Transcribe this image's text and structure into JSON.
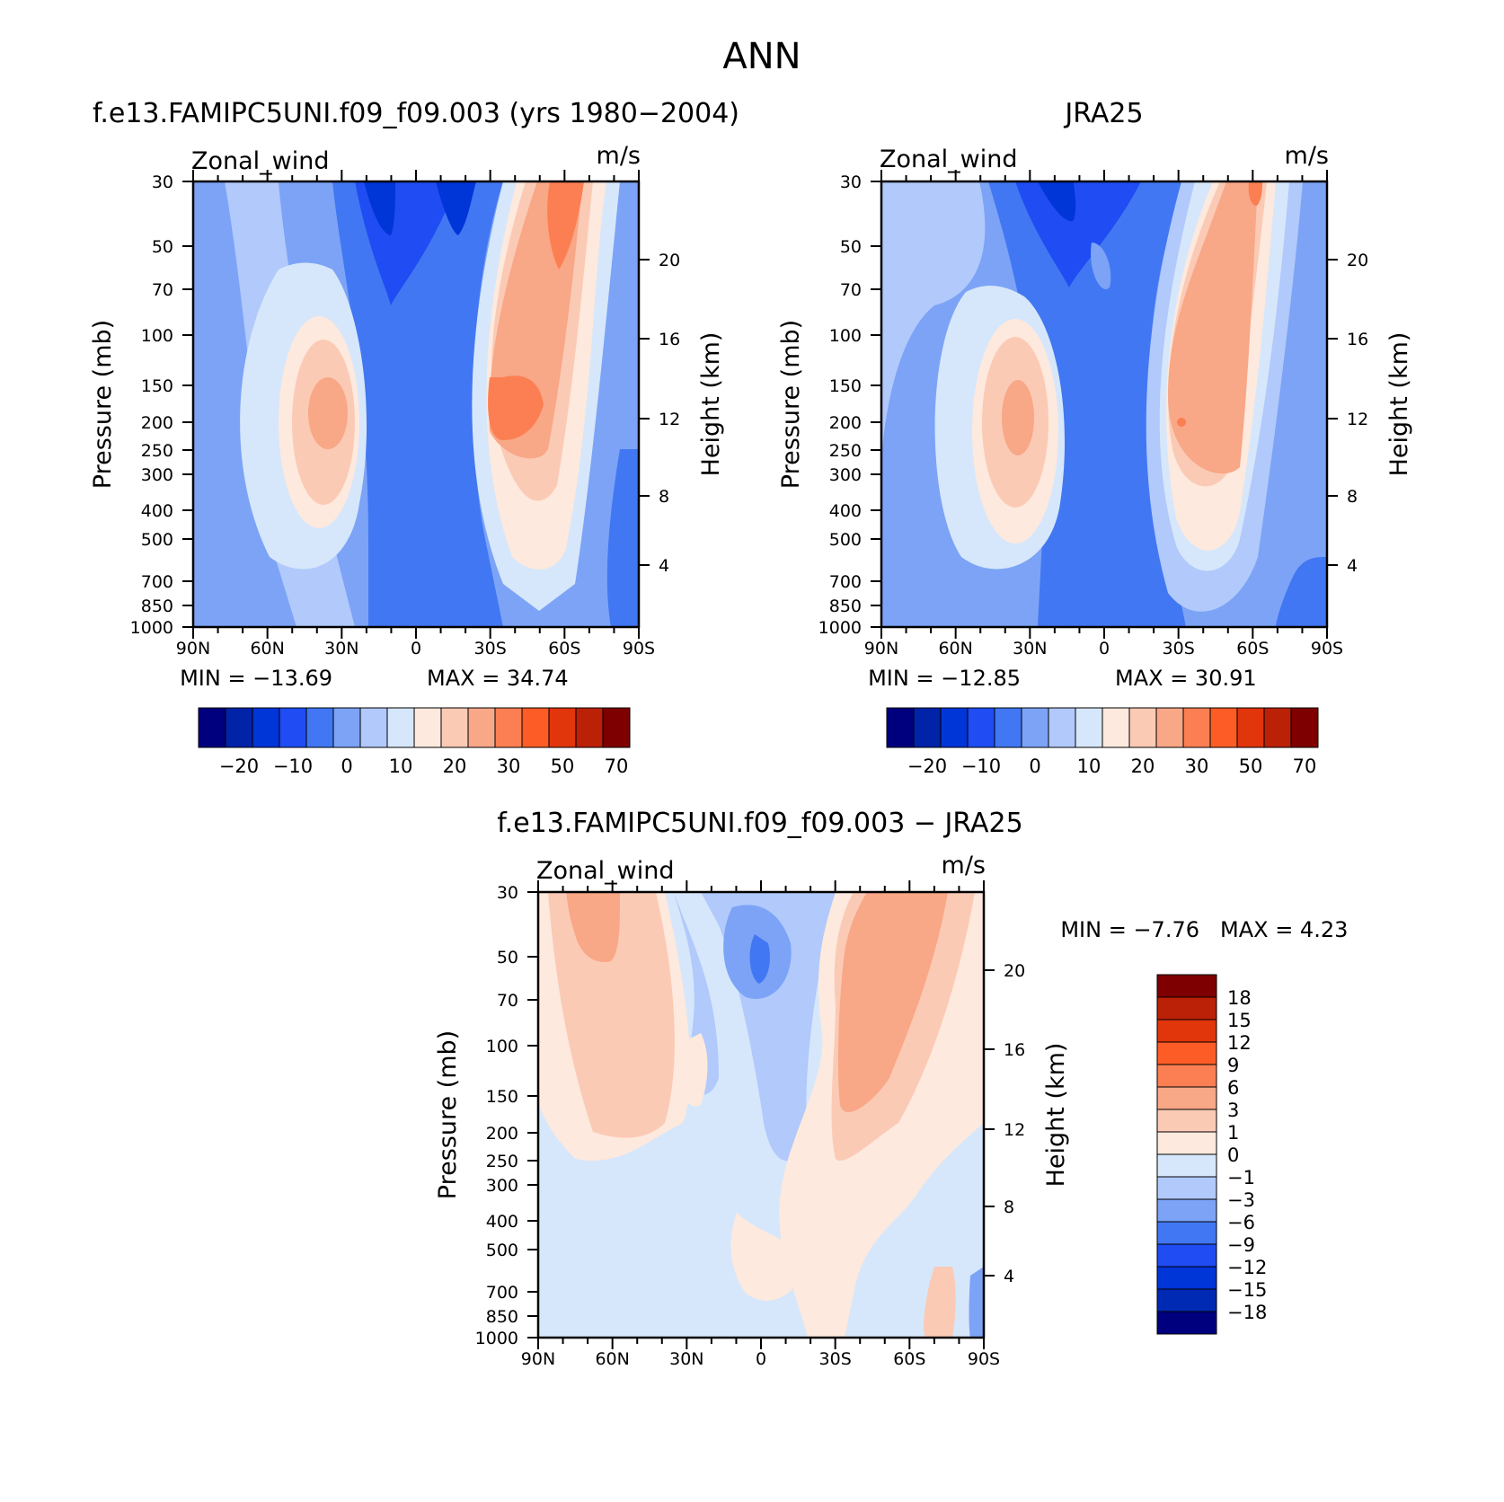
{
  "page": {
    "title": "ANN"
  },
  "colors": {
    "full": [
      "#00007f",
      "#0023a8",
      "#0035d8",
      "#1f4cf3",
      "#4177f2",
      "#7ca3f6",
      "#b1c9fb",
      "#d6e7fb",
      "#fde9dd",
      "#fbcab5",
      "#f8a787",
      "#fb7f52",
      "#fd5c26",
      "#e1350b",
      "#bb2106",
      "#7f0000"
    ],
    "diff": [
      "#00007f",
      "#0029b4",
      "#0035d8",
      "#1f4cf3",
      "#4177f2",
      "#7ca3f6",
      "#b1c9fb",
      "#d6e7fb",
      "#fde9dd",
      "#fbcab5",
      "#f8a787",
      "#fb7f52",
      "#fd5c26",
      "#e1350b",
      "#bb2106",
      "#7f0000"
    ]
  },
  "chart_data": [
    {
      "type": "contour",
      "title": "f.e13.FAMIPC5UNI.f09_f09.003 (yrs 1980−2004)",
      "left_label": "Zonal_wind",
      "right_label": "m/s",
      "ylabel": "Pressure (mb)",
      "ylabel_right": "Height (km)",
      "x_ticks": [
        "90N",
        "60N",
        "30N",
        "0",
        "30S",
        "60S",
        "90S"
      ],
      "y_ticks": [
        "30",
        "50",
        "70",
        "100",
        "150",
        "200",
        "250",
        "300",
        "400",
        "500",
        "700",
        "850",
        "1000"
      ],
      "y_right_ticks": [
        "20",
        "16",
        "12",
        "8",
        "4"
      ],
      "min_label": "MIN = −13.69",
      "max_label": "MAX = 34.74",
      "min": -13.69,
      "max": 34.74,
      "colorbar_labels": [
        "−20",
        "−10",
        "0",
        "10",
        "20",
        "30",
        "50",
        "70"
      ]
    },
    {
      "type": "contour",
      "title": "JRA25",
      "left_label": "Zonal_wind",
      "right_label": "m/s",
      "ylabel": "Pressure (mb)",
      "ylabel_right": "Height (km)",
      "x_ticks": [
        "90N",
        "60N",
        "30N",
        "0",
        "30S",
        "60S",
        "90S"
      ],
      "y_ticks": [
        "30",
        "50",
        "70",
        "100",
        "150",
        "200",
        "250",
        "300",
        "400",
        "500",
        "700",
        "850",
        "1000"
      ],
      "y_right_ticks": [
        "20",
        "16",
        "12",
        "8",
        "4"
      ],
      "min_label": "MIN = −12.85",
      "max_label": "MAX = 30.91",
      "min": -12.85,
      "max": 30.91,
      "colorbar_labels": [
        "−20",
        "−10",
        "0",
        "10",
        "20",
        "30",
        "50",
        "70"
      ]
    },
    {
      "type": "contour",
      "title": "f.e13.FAMIPC5UNI.f09_f09.003 − JRA25",
      "left_label": "Zonal_wind",
      "right_label": "m/s",
      "ylabel": "Pressure (mb)",
      "ylabel_right": "Height (km)",
      "x_ticks": [
        "90N",
        "60N",
        "30N",
        "0",
        "30S",
        "60S",
        "90S"
      ],
      "y_ticks": [
        "30",
        "50",
        "70",
        "100",
        "150",
        "200",
        "250",
        "300",
        "400",
        "500",
        "700",
        "850",
        "1000"
      ],
      "y_right_ticks": [
        "20",
        "16",
        "12",
        "8",
        "4"
      ],
      "min_label": "MIN = −7.76",
      "max_label": "MAX = 4.23",
      "min": -7.76,
      "max": 4.23,
      "colorbar_labels": [
        "18",
        "15",
        "12",
        "9",
        "6",
        "3",
        "1",
        "0",
        "−1",
        "−3",
        "−6",
        "−9",
        "−12",
        "−15",
        "−18"
      ]
    }
  ]
}
